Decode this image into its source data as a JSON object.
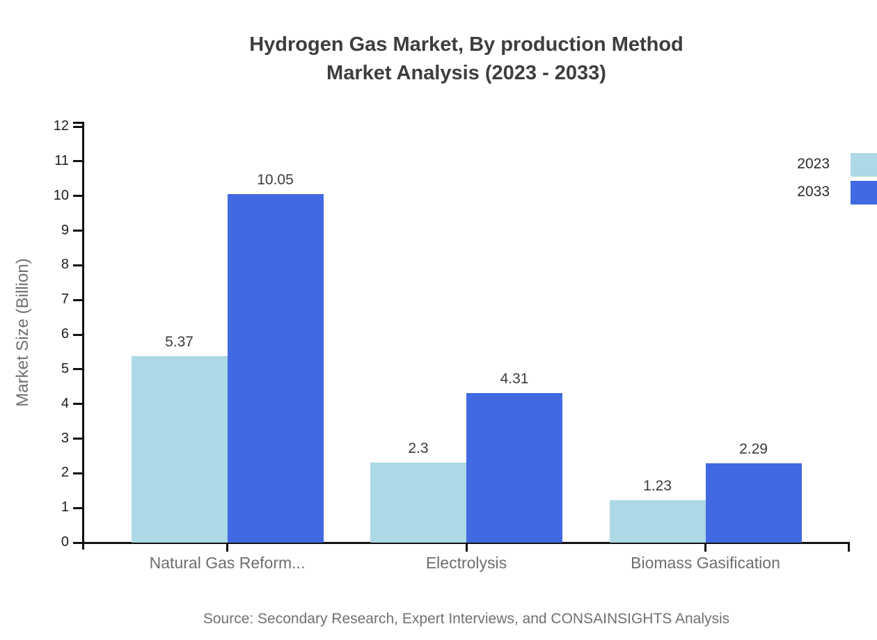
{
  "title": {
    "line1": "Hydrogen Gas Market, By production Method",
    "line2": "Market Analysis (2023 - 2033)"
  },
  "y_axis_label": "Market Size (Billion)",
  "source": "Source: Secondary Research, Expert Interviews, and CONSAINSIGHTS Analysis",
  "legend": [
    {
      "label": "2023",
      "color": "#ADD8E6"
    },
    {
      "label": "2033",
      "color": "#4169E1"
    }
  ],
  "colors": {
    "axis": "#111111",
    "series_2023": "#ADD8E6",
    "series_2033": "#4169E1",
    "title_text": "#3d3d3d",
    "muted_text": "#707070",
    "tick_text": "#1c1c1c",
    "value_text": "#3a3a3a"
  },
  "chart_data": {
    "type": "bar",
    "title": "Hydrogen Gas Market, By production Method Market Analysis (2023 - 2033)",
    "categories": [
      "Natural Gas Reform...",
      "Electrolysis",
      "Biomass Gasification"
    ],
    "series": [
      {
        "name": "2023",
        "color": "#ADD8E6",
        "values": [
          5.37,
          2.3,
          1.23
        ]
      },
      {
        "name": "2033",
        "color": "#4169E1",
        "values": [
          10.05,
          4.31,
          2.29
        ]
      }
    ],
    "xlabel": "",
    "ylabel": "Market Size (Billion)",
    "ylim": [
      0,
      12
    ],
    "y_ticks": [
      0,
      1,
      2,
      3,
      4,
      5,
      6,
      7,
      8,
      9,
      10,
      11,
      12
    ],
    "grid": false,
    "legend_position": "top-right",
    "value_labels": true
  }
}
